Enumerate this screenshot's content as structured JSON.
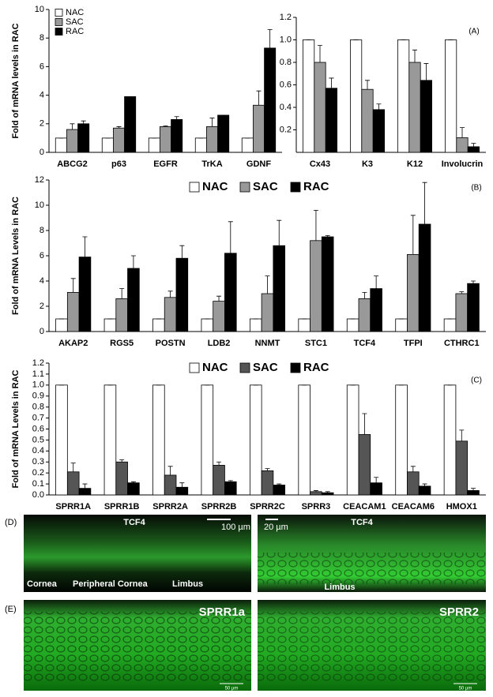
{
  "chart_data": [
    {
      "type": "bar",
      "y_label": "Fold of mRNA levels in RAC",
      "legend": "upper left",
      "categories": [
        "ABCG2",
        "p63",
        "EGFR",
        "TrKA",
        "GDNF"
      ],
      "series": [
        {
          "name": "NAC",
          "color": "#ffffff",
          "values": [
            1,
            1,
            1,
            1,
            1
          ],
          "errors": [
            0,
            0,
            0,
            0,
            0
          ]
        },
        {
          "name": "SAC",
          "color": "#999999",
          "values": [
            1.6,
            1.7,
            1.8,
            1.8,
            3.3
          ],
          "errors": [
            0.4,
            0.1,
            0.05,
            0.6,
            1.0
          ]
        },
        {
          "name": "RAC",
          "color": "#000000",
          "values": [
            2.0,
            3.9,
            2.3,
            2.6,
            7.3
          ],
          "errors": [
            0.2,
            0,
            0.2,
            0,
            1.3
          ]
        }
      ],
      "ylim": [
        0,
        10
      ],
      "yticks": [
        0,
        2,
        4,
        6,
        8,
        10
      ]
    },
    {
      "type": "bar",
      "annotation": "(A)",
      "categories": [
        "Cx43",
        "K3",
        "K12",
        "Involucrin"
      ],
      "series": [
        {
          "name": "NAC",
          "color": "#ffffff",
          "values": [
            1,
            1,
            1,
            1
          ],
          "errors": [
            0,
            0,
            0,
            0
          ]
        },
        {
          "name": "SAC",
          "color": "#999999",
          "values": [
            0.8,
            0.56,
            0.8,
            0.13
          ],
          "errors": [
            0.15,
            0.08,
            0.11,
            0.09
          ]
        },
        {
          "name": "RAC",
          "color": "#000000",
          "values": [
            0.57,
            0.38,
            0.64,
            0.05
          ],
          "errors": [
            0.09,
            0.05,
            0.15,
            0.03
          ]
        }
      ],
      "ylim": [
        0,
        1.2
      ],
      "yticks": [
        0.2,
        0.4,
        0.6,
        0.8,
        {
          "value": 1,
          "label": "1.0"
        },
        1.2
      ]
    },
    {
      "type": "bar",
      "y_label": "Fold of mRNA Levels in RAC",
      "annotation": "(B)",
      "legend": "upper center",
      "categories": [
        "AKAP2",
        "RGS5",
        "POSTN",
        "LDB2",
        "NNMT",
        "STC1",
        "TCF4",
        "TFPI",
        "CTHRC1"
      ],
      "series": [
        {
          "name": "NAC",
          "color": "#ffffff",
          "values": [
            1,
            1,
            1,
            1,
            1,
            1,
            1,
            1,
            1
          ],
          "errors": [
            0,
            0,
            0,
            0,
            0,
            0,
            0,
            0,
            0
          ]
        },
        {
          "name": "SAC",
          "color": "#999999",
          "values": [
            3.1,
            2.6,
            2.7,
            2.4,
            3.0,
            7.2,
            2.6,
            6.1,
            3.0
          ],
          "errors": [
            1.1,
            0.8,
            0.5,
            0.4,
            1.4,
            2.4,
            0.5,
            3.1,
            0.15
          ]
        },
        {
          "name": "RAC",
          "color": "#000000",
          "values": [
            5.9,
            5.0,
            5.8,
            6.2,
            6.8,
            7.5,
            3.4,
            8.5,
            3.8
          ],
          "errors": [
            1.6,
            1.0,
            1.0,
            2.5,
            2.0,
            0.1,
            1.0,
            3.3,
            0.2
          ]
        }
      ],
      "ylim": [
        0,
        12
      ],
      "yticks": [
        0,
        2,
        4,
        6,
        8,
        10,
        12
      ]
    },
    {
      "type": "bar",
      "y_label": "Fold of mRNA Levels in RAC",
      "annotation": "(C)",
      "legend": "upper center",
      "categories": [
        "SPRR1A",
        "SPRR1B",
        "SPRR2A",
        "SPRR2B",
        "SPRR2C",
        "SPRR3",
        "CEACAM1",
        "CEACAM6",
        "HMOX1"
      ],
      "series": [
        {
          "name": "NAC",
          "color": "#ffffff",
          "values": [
            1,
            1,
            1,
            1,
            1,
            1,
            1,
            1,
            1
          ],
          "errors": [
            0,
            0,
            0,
            0,
            0,
            0,
            0,
            0,
            0
          ]
        },
        {
          "name": "SAC",
          "color": "#555555",
          "values": [
            0.21,
            0.3,
            0.18,
            0.27,
            0.22,
            0.03,
            0.55,
            0.21,
            0.49
          ],
          "errors": [
            0.08,
            0.02,
            0.08,
            0.03,
            0.02,
            0.01,
            0.19,
            0.05,
            0.1
          ]
        },
        {
          "name": "RAC",
          "color": "#000000",
          "values": [
            0.06,
            0.11,
            0.07,
            0.12,
            0.09,
            0.02,
            0.11,
            0.08,
            0.04
          ],
          "errors": [
            0.04,
            0.01,
            0.04,
            0.01,
            0.01,
            0.01,
            0.05,
            0.02,
            0.02
          ]
        }
      ],
      "ylim": [
        0,
        1.2
      ],
      "yticks": [
        {
          "value": 0,
          "label": "0.0"
        },
        0.1,
        0.2,
        0.3,
        0.4,
        0.5,
        0.6,
        0.7,
        0.8,
        0.9,
        {
          "value": 1,
          "label": "1.0"
        },
        1.1,
        1.2
      ]
    }
  ],
  "images": {
    "d_label": "(D)",
    "d_left_title": "TCF4",
    "d_left_scale": "100 µm",
    "d_left_cornea": "Cornea",
    "d_left_peripheral": "Peripheral Cornea",
    "d_left_limbus": "Limbus",
    "d_right_scale": "20 µm",
    "d_right_title": "TCF4",
    "d_right_limbus": "Limbus",
    "e_label": "(E)",
    "e_left_title": "SPRR1a",
    "e_right_title": "SPRR2",
    "e_left_scale": "50 µm",
    "e_right_scale": "50 µm"
  }
}
